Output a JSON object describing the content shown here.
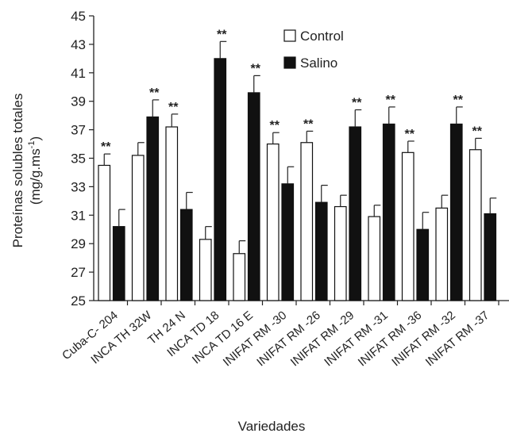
{
  "chart_data": {
    "type": "bar",
    "xlabel": "Variedades",
    "ylabel_line1": "Proteínas solubles totales",
    "ylabel_line2": "(mg/g.ms",
    "ylabel_sup": "-1",
    "ylabel_close": ")",
    "ylim": [
      25,
      45
    ],
    "yticks": [
      25,
      27,
      29,
      31,
      33,
      35,
      37,
      39,
      41,
      43,
      45
    ],
    "categories": [
      "Cuba-C- 204",
      "INCA TH 32W",
      "TH 24 N",
      "INCA TD 18",
      "INCA TD 16 E",
      "INIFAT RM -30",
      "INIFAT RM -26",
      "INIFAT RM -29",
      "INIFAT RM -31",
      "INIFAT RM -36",
      "INIFAT RM -32",
      "INIFAT RM -37"
    ],
    "series": [
      {
        "name": "Control",
        "values": [
          34.5,
          35.2,
          37.2,
          29.3,
          28.3,
          36.0,
          36.1,
          31.6,
          30.9,
          35.4,
          31.5,
          35.6
        ],
        "errors": [
          0.8,
          0.9,
          0.9,
          0.9,
          0.9,
          0.8,
          0.8,
          0.8,
          0.8,
          0.8,
          0.9,
          0.8
        ]
      },
      {
        "name": "Salino",
        "values": [
          30.2,
          37.9,
          31.4,
          42.0,
          39.6,
          33.2,
          31.9,
          37.2,
          37.4,
          30.0,
          37.4,
          31.1
        ],
        "errors": [
          1.2,
          1.2,
          1.2,
          1.2,
          1.2,
          1.2,
          1.2,
          1.2,
          1.2,
          1.2,
          1.2,
          1.1
        ]
      }
    ],
    "annotations": [
      {
        "category": 0,
        "series": "Control",
        "text": "**"
      },
      {
        "category": 1,
        "series": "Salino",
        "text": "**"
      },
      {
        "category": 2,
        "series": "Control",
        "text": "**"
      },
      {
        "category": 3,
        "series": "Salino",
        "text": "**"
      },
      {
        "category": 4,
        "series": "Salino",
        "text": "**"
      },
      {
        "category": 5,
        "series": "Control",
        "text": "**"
      },
      {
        "category": 6,
        "series": "Control",
        "text": "**"
      },
      {
        "category": 7,
        "series": "Salino",
        "text": "**"
      },
      {
        "category": 8,
        "series": "Salino",
        "text": "**"
      },
      {
        "category": 9,
        "series": "Control",
        "text": "**"
      },
      {
        "category": 10,
        "series": "Salino",
        "text": "**"
      },
      {
        "category": 11,
        "series": "Control",
        "text": "**"
      }
    ],
    "legend_position": "top-center",
    "grid": false,
    "colors": {
      "Control": "#ffffff",
      "Salino": "#111111",
      "outline": "#111111"
    }
  }
}
